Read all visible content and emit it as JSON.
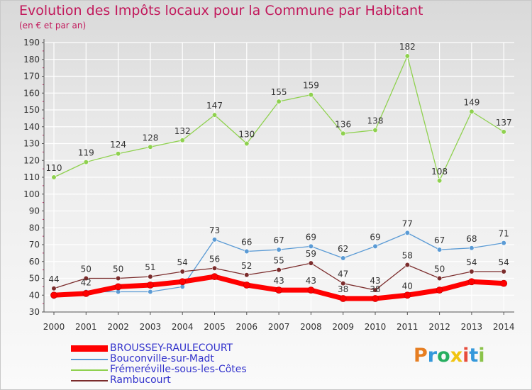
{
  "title": "Evolution des Impôts locaux pour la Commune par Habitant",
  "subtitle": "(en € et par an)",
  "logo": {
    "text": "Proxiti",
    "colors": [
      "#e67e22",
      "#3498db",
      "#27ae60",
      "#f1c40f",
      "#e74c3c",
      "#3498db",
      "#8bc34a"
    ]
  },
  "chart_data": {
    "type": "line",
    "title": "Evolution des Impôts locaux pour la Commune par Habitant",
    "subtitle": "(en € et par an)",
    "x": [
      "2000",
      "2001",
      "2002",
      "2003",
      "2004",
      "2005",
      "2006",
      "2007",
      "2008",
      "2009",
      "2010",
      "2011",
      "2012",
      "2013",
      "2014"
    ],
    "ylim": [
      30,
      190
    ],
    "yticks": [
      30,
      40,
      50,
      60,
      70,
      80,
      90,
      100,
      110,
      120,
      130,
      140,
      150,
      160,
      170,
      180,
      190
    ],
    "grid": true,
    "legend_position": "bottom-left",
    "series": [
      {
        "name": "BROUSSEY-RAULECOURT",
        "color": "#ff0000",
        "values": [
          40,
          41,
          45,
          46,
          48,
          51,
          46,
          43,
          43,
          38,
          38,
          40,
          43,
          48,
          47
        ],
        "labels": [
          null,
          null,
          null,
          null,
          null,
          null,
          null,
          "43",
          "43",
          "38",
          "38",
          "40",
          null,
          null,
          null
        ]
      },
      {
        "name": "Bouconville-sur-Madt",
        "color": "#5b9bd5",
        "values": [
          39,
          42,
          42,
          42,
          45,
          73,
          66,
          67,
          69,
          62,
          69,
          77,
          67,
          68,
          71
        ],
        "labels": [
          null,
          "42",
          null,
          null,
          null,
          "73",
          "66",
          "67",
          "69",
          "62",
          "69",
          "77",
          "67",
          "68",
          "71"
        ]
      },
      {
        "name": "Frémeréville-sous-les-Côtes",
        "color": "#8fd14f",
        "values": [
          110,
          119,
          124,
          128,
          132,
          147,
          130,
          155,
          159,
          136,
          138,
          182,
          108,
          149,
          137
        ],
        "labels": [
          "110",
          "119",
          "124",
          "128",
          "132",
          "147",
          "130",
          "155",
          "159",
          "136",
          "138",
          "182",
          "108",
          "149",
          "137"
        ]
      },
      {
        "name": "Rambucourt",
        "color": "#7b2c2c",
        "values": [
          44,
          50,
          50,
          51,
          54,
          56,
          52,
          55,
          59,
          47,
          43,
          58,
          50,
          54,
          54
        ],
        "labels": [
          "44",
          "50",
          "50",
          "51",
          "54",
          "56",
          "52",
          "55",
          "59",
          "47",
          "43",
          "58",
          "50",
          "54",
          "54"
        ]
      }
    ]
  }
}
